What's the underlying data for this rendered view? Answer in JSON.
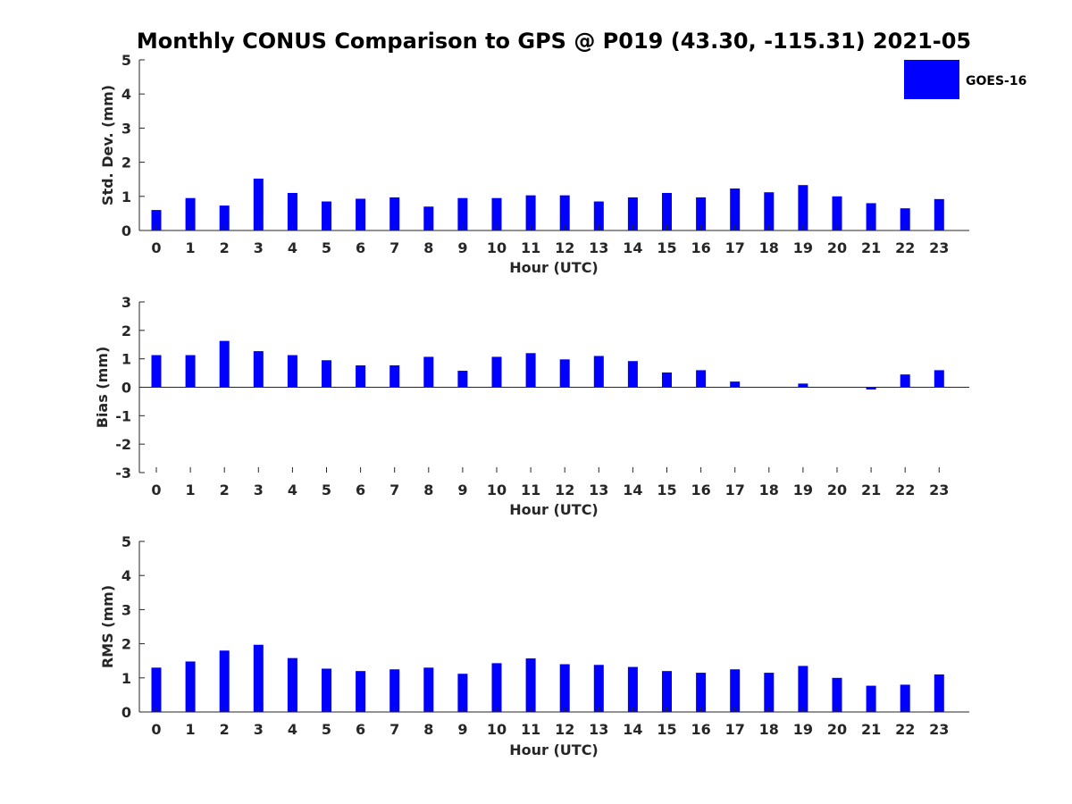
{
  "figure": {
    "title": "Monthly CONUS Comparison to GPS @ P019 (43.30, -115.31) 2021-05"
  },
  "colors": {
    "bar": "#0000ff",
    "axis": "#262626",
    "background": "#ffffff"
  },
  "legend": {
    "placement": "top-right",
    "label": "GOES-16"
  },
  "chart_data": [
    {
      "type": "bar",
      "title": "Monthly CONUS Comparison to GPS @ P019 (43.30, -115.31) 2021-05",
      "xlabel": "Hour (UTC)",
      "ylabel": "Std. Dev. (mm)",
      "categories": [
        "0",
        "1",
        "2",
        "3",
        "4",
        "5",
        "6",
        "7",
        "8",
        "9",
        "10",
        "11",
        "12",
        "13",
        "14",
        "15",
        "16",
        "17",
        "18",
        "19",
        "20",
        "21",
        "22",
        "23"
      ],
      "ylim": [
        0,
        5
      ],
      "yticks": [
        "0",
        "1",
        "2",
        "3",
        "4",
        "5"
      ],
      "series": [
        {
          "name": "GOES-16",
          "values": [
            0.6,
            0.95,
            0.73,
            1.52,
            1.1,
            0.85,
            0.93,
            0.97,
            0.7,
            0.95,
            0.95,
            1.03,
            1.03,
            0.85,
            0.97,
            1.1,
            0.97,
            1.23,
            1.12,
            1.33,
            1.0,
            0.8,
            0.65,
            0.92
          ]
        }
      ],
      "grid": false
    },
    {
      "type": "bar",
      "xlabel": "Hour (UTC)",
      "ylabel": "Bias (mm)",
      "categories": [
        "0",
        "1",
        "2",
        "3",
        "4",
        "5",
        "6",
        "7",
        "8",
        "9",
        "10",
        "11",
        "12",
        "13",
        "14",
        "15",
        "16",
        "17",
        "18",
        "19",
        "20",
        "21",
        "22",
        "23"
      ],
      "ylim": [
        -3,
        3
      ],
      "yticks": [
        "-3",
        "-2",
        "-1",
        "0",
        "1",
        "2",
        "3"
      ],
      "series": [
        {
          "name": "GOES-16",
          "values": [
            1.13,
            1.13,
            1.63,
            1.27,
            1.13,
            0.95,
            0.77,
            0.77,
            1.07,
            0.58,
            1.07,
            1.2,
            0.98,
            1.1,
            0.92,
            0.52,
            0.6,
            0.2,
            0.0,
            0.13,
            0.0,
            -0.08,
            0.45,
            0.6
          ]
        }
      ],
      "grid": false
    },
    {
      "type": "bar",
      "xlabel": "Hour (UTC)",
      "ylabel": "RMS (mm)",
      "categories": [
        "0",
        "1",
        "2",
        "3",
        "4",
        "5",
        "6",
        "7",
        "8",
        "9",
        "10",
        "11",
        "12",
        "13",
        "14",
        "15",
        "16",
        "17",
        "18",
        "19",
        "20",
        "21",
        "22",
        "23"
      ],
      "ylim": [
        0,
        5
      ],
      "yticks": [
        "0",
        "1",
        "2",
        "3",
        "4",
        "5"
      ],
      "series": [
        {
          "name": "GOES-16",
          "values": [
            1.3,
            1.48,
            1.8,
            1.97,
            1.58,
            1.27,
            1.2,
            1.25,
            1.3,
            1.12,
            1.43,
            1.57,
            1.4,
            1.38,
            1.32,
            1.2,
            1.15,
            1.25,
            1.15,
            1.35,
            1.0,
            0.77,
            0.8,
            1.1
          ]
        }
      ],
      "grid": false
    }
  ]
}
